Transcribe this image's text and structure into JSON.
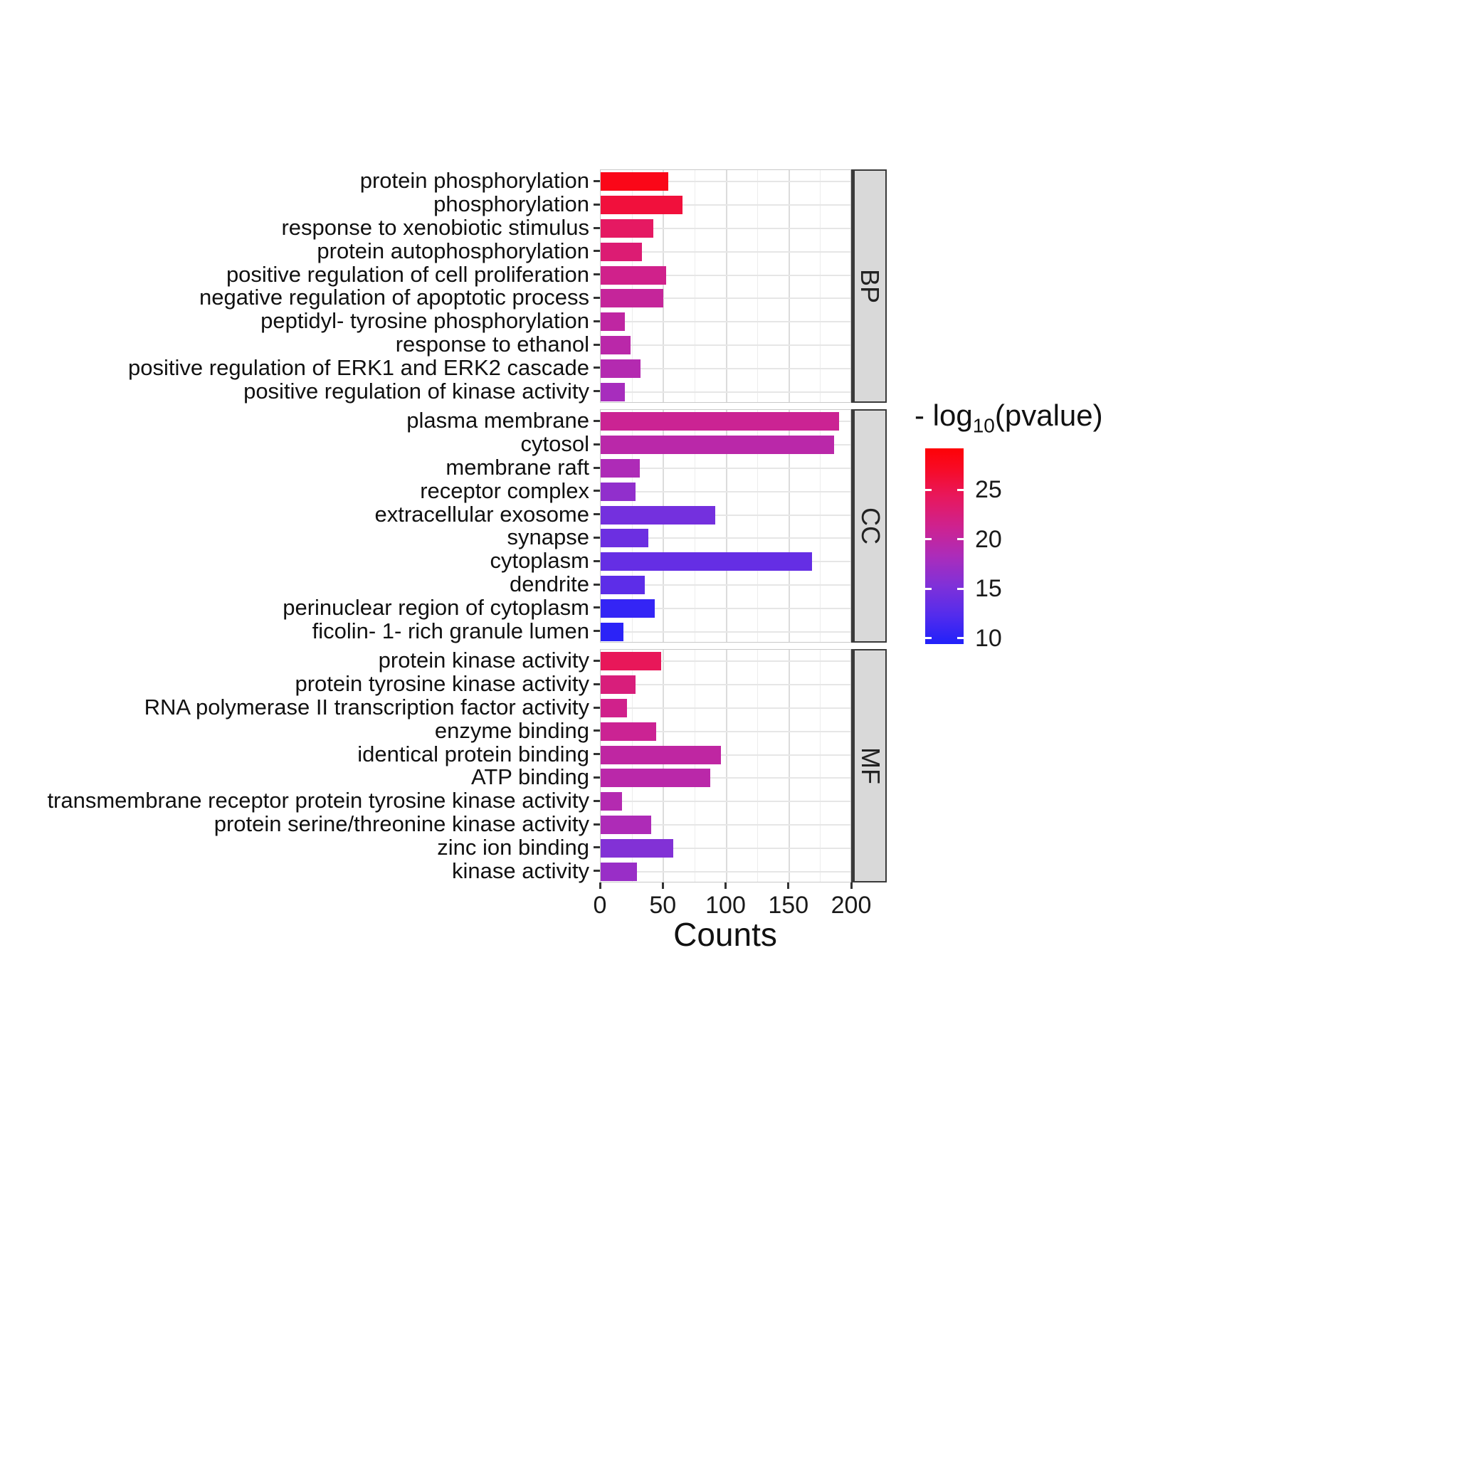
{
  "chart_data": {
    "type": "bar",
    "orientation": "horizontal",
    "title": "",
    "xlabel": "Counts",
    "ylabel": "",
    "xlim": [
      0,
      200
    ],
    "x_ticks": [
      0,
      50,
      100,
      150,
      200
    ],
    "grid": true,
    "legend": {
      "title": "- log10(pvalue)",
      "title_parts": {
        "prefix": "- log",
        "sub": "10",
        "suffix": "(pvalue)"
      },
      "position": "right",
      "scale": "color-gradient",
      "range": [
        9.4,
        29.2
      ],
      "ticks": [
        25,
        20,
        15,
        10
      ],
      "low_color": "#2121FA",
      "high_color": "#FD0206"
    },
    "facets": [
      {
        "label": "BP",
        "rows": [
          {
            "category": "protein phosphorylation",
            "count": 54,
            "neg_log10_pvalue": 28
          },
          {
            "category": "phosphorylation",
            "count": 65,
            "neg_log10_pvalue": 26
          },
          {
            "category": "response to xenobiotic stimulus",
            "count": 42,
            "neg_log10_pvalue": 24
          },
          {
            "category": "protein autophosphorylation",
            "count": 33,
            "neg_log10_pvalue": 23
          },
          {
            "category": "positive regulation of cell proliferation",
            "count": 52,
            "neg_log10_pvalue": 21.5
          },
          {
            "category": "negative regulation of apoptotic process",
            "count": 50,
            "neg_log10_pvalue": 20.5
          },
          {
            "category": "peptidyl- tyrosine phosphorylation",
            "count": 19,
            "neg_log10_pvalue": 20
          },
          {
            "category": "response to ethanol",
            "count": 24,
            "neg_log10_pvalue": 19.5
          },
          {
            "category": "positive regulation of ERK1 and ERK2 cascade",
            "count": 32,
            "neg_log10_pvalue": 19
          },
          {
            "category": "positive regulation of kinase activity",
            "count": 19,
            "neg_log10_pvalue": 18
          }
        ]
      },
      {
        "label": "CC",
        "rows": [
          {
            "category": "plasma membrane",
            "count": 190,
            "neg_log10_pvalue": 21
          },
          {
            "category": "cytosol",
            "count": 186,
            "neg_log10_pvalue": 19.5
          },
          {
            "category": "membrane raft",
            "count": 31,
            "neg_log10_pvalue": 18.5
          },
          {
            "category": "receptor complex",
            "count": 28,
            "neg_log10_pvalue": 16.5
          },
          {
            "category": "extracellular exosome",
            "count": 91,
            "neg_log10_pvalue": 14.5
          },
          {
            "category": "synapse",
            "count": 38,
            "neg_log10_pvalue": 14
          },
          {
            "category": "cytoplasm",
            "count": 168,
            "neg_log10_pvalue": 13.5
          },
          {
            "category": "dendrite",
            "count": 35,
            "neg_log10_pvalue": 13
          },
          {
            "category": "perinuclear region of cytoplasm",
            "count": 43,
            "neg_log10_pvalue": 10.5
          },
          {
            "category": "ficolin- 1- rich granule lumen",
            "count": 18,
            "neg_log10_pvalue": 10
          }
        ]
      },
      {
        "label": "MF",
        "rows": [
          {
            "category": "protein kinase activity",
            "count": 48,
            "neg_log10_pvalue": 24.5
          },
          {
            "category": "protein tyrosine kinase activity",
            "count": 28,
            "neg_log10_pvalue": 22.5
          },
          {
            "category": "RNA polymerase II transcription factor activity",
            "count": 21,
            "neg_log10_pvalue": 21.5
          },
          {
            "category": "enzyme binding",
            "count": 44,
            "neg_log10_pvalue": 21
          },
          {
            "category": "identical protein binding",
            "count": 96,
            "neg_log10_pvalue": 20
          },
          {
            "category": "ATP binding",
            "count": 87,
            "neg_log10_pvalue": 19.5
          },
          {
            "category": "transmembrane receptor protein tyrosine kinase activity",
            "count": 17,
            "neg_log10_pvalue": 19
          },
          {
            "category": "protein serine/threonine kinase activity",
            "count": 40,
            "neg_log10_pvalue": 18.5
          },
          {
            "category": "zinc ion binding",
            "count": 58,
            "neg_log10_pvalue": 15.5
          },
          {
            "category": "kinase activity",
            "count": 29,
            "neg_log10_pvalue": 17
          }
        ]
      }
    ]
  }
}
